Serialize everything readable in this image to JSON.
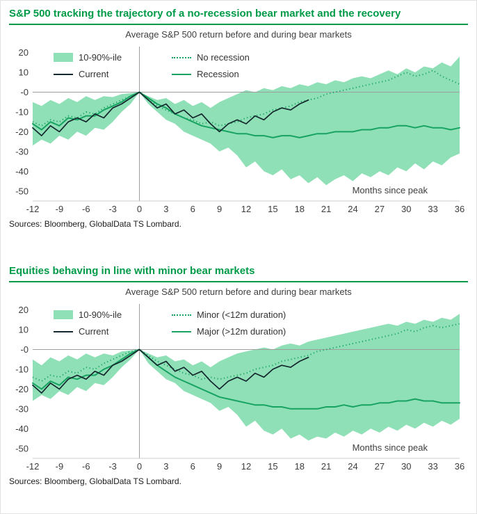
{
  "colors": {
    "title": "#009b48",
    "band": "#8fe0b7",
    "line": "#17a361",
    "dark": "#14282e",
    "axis": "#3d3d3d",
    "grid": "#9e9e9e",
    "frame": "#cccccc"
  },
  "charts": [
    {
      "title": "S&P 500 tracking the trajectory of a no-recession bear market and the recovery",
      "subtitle": "Average S&P 500 return before and during bear markets",
      "months_label": "Months since peak",
      "sources": "Sources: Bloomberg, GlobalData TS Lombard.",
      "legend": {
        "band": "10-90%-ile",
        "dotted": "No recession",
        "dark": "Current",
        "solid": "Recession"
      }
    },
    {
      "title": "Equities behaving in line with minor bear markets",
      "subtitle": "Average S&P 500 return before and during bear markets",
      "months_label": "Months since peak",
      "sources": "Sources: Bloomberg, GlobalData TS Lombard.",
      "legend": {
        "band": "10-90%-ile",
        "dotted": "Minor (<12m duration)",
        "dark": "Current",
        "solid": "Major (>12m duration)"
      }
    }
  ],
  "chart_data": [
    {
      "type": "area",
      "title": "Average S&P 500 return before and during bear markets",
      "xlabel": "Months since peak",
      "ylabel": "",
      "xlim": [
        -12,
        36
      ],
      "ylim": [
        -55,
        23
      ],
      "x_ticks": [
        -12,
        -9,
        -6,
        -3,
        0,
        3,
        6,
        9,
        12,
        15,
        18,
        21,
        24,
        27,
        30,
        33,
        36
      ],
      "y_ticks": [
        20,
        10,
        0,
        -10,
        -20,
        -30,
        -40,
        -50
      ],
      "y_tick_labels": [
        "20",
        "10",
        "-0",
        "-10",
        "-20",
        "-30",
        "-40",
        "-50"
      ],
      "x": [
        -12,
        -11,
        -10,
        -9,
        -8,
        -7,
        -6,
        -5,
        -4,
        -3,
        -2,
        -1,
        0,
        1,
        2,
        3,
        4,
        5,
        6,
        7,
        8,
        9,
        10,
        11,
        12,
        13,
        14,
        15,
        16,
        17,
        18,
        19,
        20,
        21,
        22,
        23,
        24,
        25,
        26,
        27,
        28,
        29,
        30,
        31,
        32,
        33,
        34,
        35,
        36
      ],
      "band": {
        "name": "10-90%-ile",
        "upper": [
          -5,
          -7,
          -4,
          -6,
          -3,
          -5,
          -2,
          -4,
          -2,
          -2.5,
          -1,
          -0.5,
          0,
          -2,
          -4,
          -3,
          -6,
          -4,
          -7,
          -5,
          -8,
          -5,
          -3,
          -1,
          1,
          0,
          2,
          1,
          3,
          2,
          4,
          3,
          5,
          4,
          6,
          5,
          7,
          8,
          7,
          9,
          11,
          9,
          12,
          10,
          13,
          12,
          15,
          13,
          18
        ],
        "lower": [
          -27,
          -24,
          -26,
          -22,
          -24,
          -20,
          -22,
          -18,
          -19,
          -15,
          -10,
          -6,
          0,
          -6,
          -10,
          -14,
          -16,
          -20,
          -22,
          -24,
          -26,
          -30,
          -28,
          -32,
          -38,
          -35,
          -40,
          -42,
          -39,
          -44,
          -42,
          -46,
          -43,
          -47,
          -44,
          -42,
          -45,
          -41,
          -43,
          -40,
          -42,
          -38,
          -40,
          -36,
          -39,
          -35,
          -37,
          -33,
          -31
        ]
      },
      "series": [
        {
          "name": "No recession",
          "style": "dotted",
          "values": [
            -15,
            -17,
            -14,
            -15,
            -12,
            -13,
            -10,
            -11,
            -8,
            -6,
            -4,
            -2,
            0,
            -4,
            -7,
            -9,
            -11,
            -13,
            -14,
            -16,
            -15,
            -17,
            -16,
            -15,
            -13,
            -12,
            -11,
            -9,
            -8,
            -7,
            -5,
            -4,
            -3,
            -1,
            0,
            1,
            2,
            3,
            4,
            5,
            6,
            8,
            10,
            8,
            9,
            11,
            8,
            6,
            4
          ]
        },
        {
          "name": "Recession",
          "style": "solid",
          "values": [
            -16,
            -19,
            -15,
            -17,
            -13,
            -14,
            -12,
            -12,
            -9,
            -7,
            -5,
            -2,
            0,
            -3,
            -6,
            -8,
            -11,
            -13,
            -15,
            -17,
            -18,
            -19,
            -20,
            -21,
            -21,
            -22,
            -22,
            -23,
            -22,
            -22,
            -23,
            -22,
            -21,
            -21,
            -20,
            -20,
            -20,
            -19,
            -19,
            -18,
            -18,
            -17,
            -17,
            -18,
            -17,
            -18,
            -18,
            -19,
            -18
          ]
        },
        {
          "name": "Current",
          "style": "dark",
          "x": [
            -12,
            -11,
            -10,
            -9,
            -8,
            -7,
            -6,
            -5,
            -4,
            -3,
            -2,
            -1,
            0,
            1,
            2,
            3,
            4,
            5,
            6,
            7,
            8,
            9,
            10,
            11,
            12,
            13,
            14,
            15,
            16,
            17,
            18,
            19
          ],
          "values": [
            -18,
            -22,
            -17,
            -20,
            -15,
            -13,
            -15,
            -11,
            -13,
            -8,
            -6,
            -3,
            0,
            -4,
            -8,
            -6,
            -11,
            -9,
            -13,
            -11,
            -16,
            -20,
            -16,
            -14,
            -16,
            -12,
            -14,
            -10,
            -8,
            -9,
            -6,
            -4
          ]
        }
      ]
    },
    {
      "type": "area",
      "title": "Average S&P 500 return before and during bear markets",
      "xlabel": "Months since peak",
      "ylabel": "",
      "xlim": [
        -12,
        36
      ],
      "ylim": [
        -55,
        23
      ],
      "x_ticks": [
        -12,
        -9,
        -6,
        -3,
        0,
        3,
        6,
        9,
        12,
        15,
        18,
        21,
        24,
        27,
        30,
        33,
        36
      ],
      "y_ticks": [
        20,
        10,
        0,
        -10,
        -20,
        -30,
        -40,
        -50
      ],
      "y_tick_labels": [
        "20",
        "10",
        "-0",
        "-10",
        "-20",
        "-30",
        "-40",
        "-50"
      ],
      "x": [
        -12,
        -11,
        -10,
        -9,
        -8,
        -7,
        -6,
        -5,
        -4,
        -3,
        -2,
        -1,
        0,
        1,
        2,
        3,
        4,
        5,
        6,
        7,
        8,
        9,
        10,
        11,
        12,
        13,
        14,
        15,
        16,
        17,
        18,
        19,
        20,
        21,
        22,
        23,
        24,
        25,
        26,
        27,
        28,
        29,
        30,
        31,
        32,
        33,
        34,
        35,
        36
      ],
      "band": {
        "name": "10-90%-ile",
        "upper": [
          -5,
          -8,
          -4,
          -6,
          -3,
          -5,
          -2,
          -4,
          -2,
          -3,
          -1,
          -0.5,
          0,
          -2,
          -4,
          -3,
          -6,
          -5,
          -8,
          -6,
          -9,
          -6,
          -4,
          -2,
          -1,
          0,
          1,
          0,
          2,
          3,
          2,
          4,
          5,
          6,
          7,
          8,
          9,
          10,
          11,
          12,
          13,
          12,
          14,
          13,
          15,
          14,
          16,
          15,
          18
        ],
        "lower": [
          -26,
          -23,
          -25,
          -21,
          -23,
          -19,
          -21,
          -17,
          -18,
          -14,
          -9,
          -5,
          0,
          -7,
          -11,
          -15,
          -17,
          -21,
          -23,
          -25,
          -27,
          -31,
          -29,
          -33,
          -39,
          -36,
          -41,
          -43,
          -40,
          -45,
          -43,
          -46,
          -44,
          -45,
          -42,
          -44,
          -41,
          -43,
          -40,
          -42,
          -39,
          -41,
          -38,
          -40,
          -37,
          -39,
          -36,
          -38,
          -35
        ]
      },
      "series": [
        {
          "name": "Minor (<12m duration)",
          "style": "dotted",
          "values": [
            -14,
            -16,
            -13,
            -14,
            -11,
            -12,
            -9,
            -10,
            -7,
            -5,
            -3,
            -1,
            0,
            -3,
            -6,
            -8,
            -10,
            -12,
            -13,
            -15,
            -14,
            -15,
            -14,
            -13,
            -12,
            -10,
            -9,
            -8,
            -6,
            -5,
            -4,
            -3,
            -1,
            0,
            1,
            2,
            3,
            4,
            5,
            6,
            7,
            8,
            10,
            9,
            11,
            12,
            11,
            12,
            13
          ]
        },
        {
          "name": "Major (>12m duration)",
          "style": "solid",
          "values": [
            -17,
            -20,
            -16,
            -18,
            -14,
            -15,
            -13,
            -13,
            -10,
            -8,
            -5,
            -2,
            0,
            -4,
            -8,
            -11,
            -14,
            -16,
            -18,
            -20,
            -22,
            -24,
            -25,
            -26,
            -27,
            -28,
            -28,
            -29,
            -29,
            -30,
            -30,
            -30,
            -30,
            -29,
            -29,
            -28,
            -29,
            -28,
            -28,
            -27,
            -27,
            -26,
            -26,
            -25,
            -26,
            -26,
            -27,
            -27,
            -27
          ]
        },
        {
          "name": "Current",
          "style": "dark",
          "x": [
            -12,
            -11,
            -10,
            -9,
            -8,
            -7,
            -6,
            -5,
            -4,
            -3,
            -2,
            -1,
            0,
            1,
            2,
            3,
            4,
            5,
            6,
            7,
            8,
            9,
            10,
            11,
            12,
            13,
            14,
            15,
            16,
            17,
            18,
            19
          ],
          "values": [
            -18,
            -22,
            -17,
            -20,
            -15,
            -13,
            -15,
            -11,
            -13,
            -8,
            -6,
            -3,
            0,
            -4,
            -8,
            -6,
            -11,
            -9,
            -13,
            -11,
            -16,
            -20,
            -16,
            -14,
            -16,
            -12,
            -14,
            -10,
            -8,
            -9,
            -6,
            -4
          ]
        }
      ]
    }
  ]
}
